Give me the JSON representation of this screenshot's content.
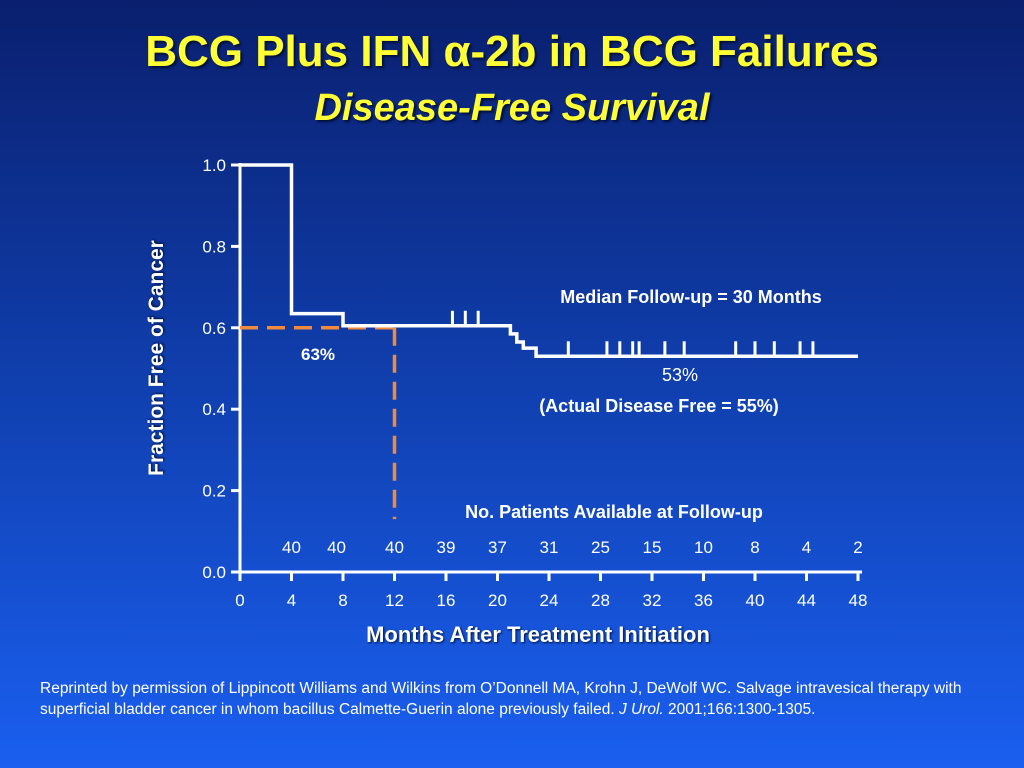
{
  "slide": {
    "title": "BCG Plus IFN α-2b in BCG Failures",
    "subtitle": "Disease-Free Survival",
    "footnote": {
      "text_before": "Reprinted by permission of Lippincott Williams and Wilkins from O’Donnell MA, Krohn J, DeWolf WC. Salvage intravesical therapy with superficial bladder cancer in whom bacillus Calmette-Guerin alone previously failed. ",
      "journal": "J Urol.",
      "text_after": " 2001;166:1300-1305."
    }
  },
  "colors": {
    "title": "#ffff33",
    "line": "#ffffff",
    "reference": "#f08a3c",
    "text": "#ffffff"
  },
  "chart_data": {
    "type": "line",
    "xlabel": "Months After Treatment Initiation",
    "ylabel": "Fraction Free of Cancer",
    "xlim": [
      0,
      48
    ],
    "ylim": [
      0,
      1.0
    ],
    "xticks": [
      0,
      4,
      8,
      12,
      16,
      20,
      24,
      28,
      32,
      36,
      40,
      44,
      48
    ],
    "yticks": [
      "0.0",
      "0.2",
      "0.4",
      "0.6",
      "0.8",
      "1.0"
    ],
    "grid": false,
    "series": [
      {
        "style": "step",
        "x": [
          0,
          4,
          4,
          8,
          8,
          21,
          21,
          21.5,
          21.5,
          22,
          22,
          23,
          23,
          48
        ],
        "y": [
          1.0,
          1.0,
          0.635,
          0.635,
          0.605,
          0.605,
          0.585,
          0.585,
          0.565,
          0.565,
          0.55,
          0.55,
          0.53,
          0.53
        ]
      }
    ],
    "censor_marks": [
      {
        "x": 16.5,
        "y": 0.605
      },
      {
        "x": 17.5,
        "y": 0.605
      },
      {
        "x": 18.5,
        "y": 0.605
      },
      {
        "x": 25.5,
        "y": 0.53
      },
      {
        "x": 28.5,
        "y": 0.53
      },
      {
        "x": 29.5,
        "y": 0.53
      },
      {
        "x": 30.5,
        "y": 0.53
      },
      {
        "x": 31.0,
        "y": 0.53
      },
      {
        "x": 33.0,
        "y": 0.53
      },
      {
        "x": 34.5,
        "y": 0.53
      },
      {
        "x": 38.5,
        "y": 0.53
      },
      {
        "x": 40.0,
        "y": 0.53
      },
      {
        "x": 41.5,
        "y": 0.53
      },
      {
        "x": 43.5,
        "y": 0.53
      },
      {
        "x": 44.5,
        "y": 0.53
      }
    ],
    "reference_lines": {
      "x": 12,
      "y": 0.6,
      "y_end": 0.13
    },
    "annotations": {
      "ref_label": "63%",
      "median": "Median Follow-up = 30 Months",
      "end_value": "53%",
      "actual": "(Actual Disease Free = 55%)",
      "patients_title": "No. Patients Available at Follow-up"
    },
    "patients_at_risk": [
      {
        "x": 4,
        "n": "40"
      },
      {
        "x": 7.5,
        "n": "40"
      },
      {
        "x": 12,
        "n": "40"
      },
      {
        "x": 16,
        "n": "39"
      },
      {
        "x": 20,
        "n": "37"
      },
      {
        "x": 24,
        "n": "31"
      },
      {
        "x": 28,
        "n": "25"
      },
      {
        "x": 32,
        "n": "15"
      },
      {
        "x": 36,
        "n": "10"
      },
      {
        "x": 40,
        "n": "8"
      },
      {
        "x": 44,
        "n": "4"
      },
      {
        "x": 48,
        "n": "2"
      }
    ]
  }
}
